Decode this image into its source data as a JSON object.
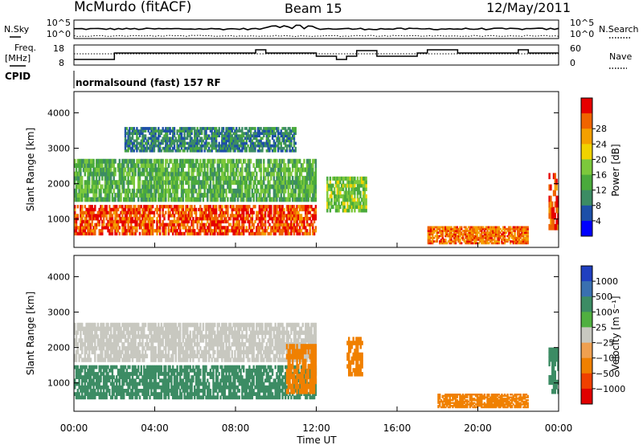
{
  "header": {
    "station": "McMurdo (fitACF)",
    "beam": "Beam 15",
    "date": "12/May/2011"
  },
  "noise_panel": {
    "left_label": "N.Sky",
    "right_label": "N.Search",
    "left_ticks": [
      "10^5",
      "10^0"
    ],
    "right_ticks": [
      "10^5",
      "10^0"
    ]
  },
  "freq_panel": {
    "left_label_1": "Freq.",
    "left_label_2": "[MHz]",
    "left_ticks": [
      "18",
      "8"
    ],
    "right_label": "Nave",
    "right_ticks": [
      "60",
      "0"
    ],
    "cpid_label": "CPID",
    "cpid_text": "normalsound (fast) 157 RF"
  },
  "colors": {
    "power_scale": [
      "#0000ff",
      "#1d4fa8",
      "#3c8c64",
      "#4aaa3c",
      "#7cc83c",
      "#f0d200",
      "#f4a000",
      "#f06400",
      "#e60000"
    ],
    "velocity_scale": [
      "#2040c0",
      "#3a70b0",
      "#3c8c64",
      "#50b040",
      "#c8c8c0",
      "#f0a050",
      "#f08000",
      "#f04000",
      "#e00000"
    ]
  },
  "chart_data": [
    {
      "type": "heatmap",
      "title": "Power",
      "xlabel": "",
      "ylabel": "Slant Range [km]",
      "yticks": [
        "1000",
        "2000",
        "3000",
        "4000"
      ],
      "ylim": [
        200,
        4600
      ],
      "xlim": [
        "00:00",
        "24:00"
      ],
      "colorbar_label": "Power [dB]",
      "colorbar_ticks": [
        "4",
        "8",
        "12",
        "16",
        "20",
        "24",
        "28"
      ],
      "colorbar_range": [
        0,
        30
      ],
      "regions": [
        {
          "t0": 0.0,
          "t1": 12.0,
          "r0": 550,
          "r1": 1400,
          "level": 26
        },
        {
          "t0": 0.0,
          "t1": 12.0,
          "r0": 1500,
          "r1": 2700,
          "level": 12
        },
        {
          "t0": 2.5,
          "t1": 11.0,
          "r0": 2900,
          "r1": 3600,
          "level": 8
        },
        {
          "t0": 12.5,
          "t1": 14.5,
          "r0": 1200,
          "r1": 2200,
          "level": 14
        },
        {
          "t0": 17.5,
          "t1": 22.5,
          "r0": 300,
          "r1": 800,
          "level": 24
        },
        {
          "t0": 23.5,
          "t1": 24.0,
          "r0": 700,
          "r1": 2300,
          "level": 26
        }
      ]
    },
    {
      "type": "heatmap",
      "title": "Velocity",
      "xlabel": "Time UT",
      "ylabel": "Slant Range [km]",
      "yticks": [
        "1000",
        "2000",
        "3000",
        "4000"
      ],
      "ylim": [
        200,
        4600
      ],
      "xticks": [
        "00:00",
        "04:00",
        "08:00",
        "12:00",
        "16:00",
        "20:00",
        "00:00"
      ],
      "colorbar_label": "Velocity [m s⁻¹]",
      "colorbar_ticks": [
        "1000",
        "500",
        "100",
        "25",
        "−25",
        "−100",
        "−500",
        "−1000"
      ],
      "regions": [
        {
          "t0": 0.0,
          "t1": 12.0,
          "r0": 550,
          "r1": 1500,
          "level": 100
        },
        {
          "t0": 0.0,
          "t1": 12.0,
          "r0": 1600,
          "r1": 2700,
          "level": 0
        },
        {
          "t0": 10.5,
          "t1": 12.0,
          "r0": 700,
          "r1": 2100,
          "level": -200
        },
        {
          "t0": 13.5,
          "t1": 14.3,
          "r0": 1200,
          "r1": 2300,
          "level": -200
        },
        {
          "t0": 18.0,
          "t1": 22.5,
          "r0": 300,
          "r1": 700,
          "level": -200
        },
        {
          "t0": 23.5,
          "t1": 24.0,
          "r0": 700,
          "r1": 2000,
          "level": 100
        }
      ]
    }
  ]
}
